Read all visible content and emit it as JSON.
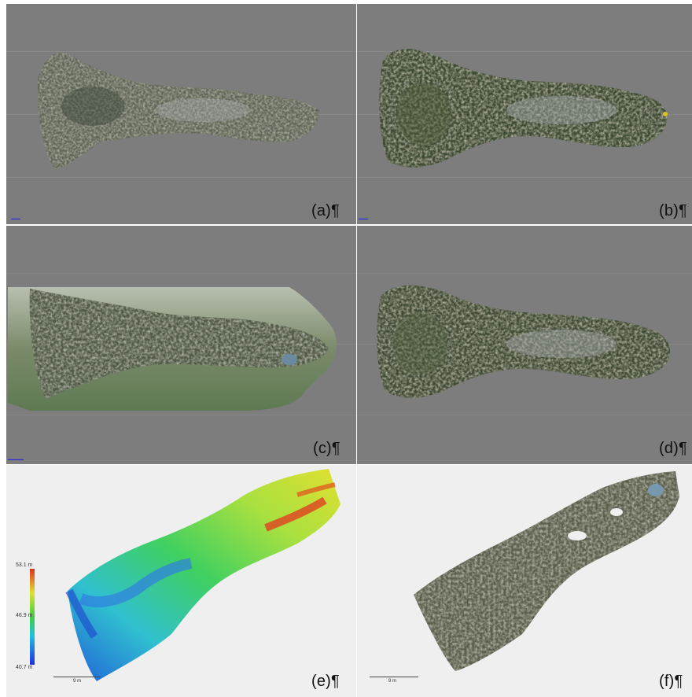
{
  "panels": [
    {
      "id": "a",
      "label": "(a)¶"
    },
    {
      "id": "b",
      "label": "(b)¶"
    },
    {
      "id": "c",
      "label": "(c)¶"
    },
    {
      "id": "d",
      "label": "(d)¶"
    },
    {
      "id": "e",
      "label": "(e)¶"
    },
    {
      "id": "f",
      "label": "(f)¶"
    }
  ],
  "colorbar": {
    "max": "53.1 m",
    "mid": "46.9 m",
    "min": "40.7 m"
  },
  "scale_bar": {
    "label": "9 m"
  },
  "colors": {
    "viewport_gray": "#7d7d7d",
    "canvas_light": "#efefef"
  }
}
